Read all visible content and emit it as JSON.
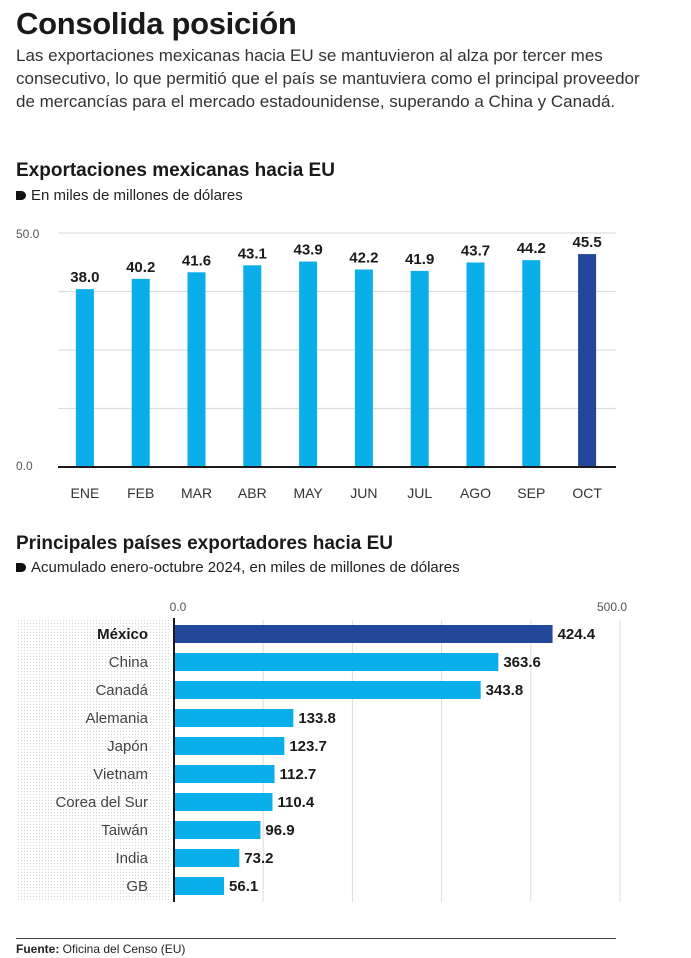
{
  "header": {
    "title": "Consolida posición",
    "intro": "Las exportaciones mexicanas hacia EU se mantuvieron al alza por tercer mes consecutivo, lo que permitió que el país se mantuviera como el principal proveedor de mercancías para el mercado estadounidense, superando a China y Canadá."
  },
  "colors": {
    "bar": "#0aaeea",
    "highlight": "#23479b",
    "grid": "#dddddd",
    "axis": "#1a1a1a"
  },
  "chart_data": [
    {
      "type": "bar",
      "title": "Exportaciones mexicanas hacia EU",
      "subtitle": "En miles de millones de dólares",
      "bullet_icon": "bullet-marker-icon",
      "categories": [
        "ENE",
        "FEB",
        "MAR",
        "ABR",
        "MAY",
        "JUN",
        "JUL",
        "AGO",
        "SEP",
        "OCT"
      ],
      "values": [
        38.0,
        40.2,
        41.6,
        43.1,
        43.9,
        42.2,
        41.9,
        43.7,
        44.2,
        45.5
      ],
      "value_labels": [
        "38.0",
        "40.2",
        "41.6",
        "43.1",
        "43.9",
        "42.2",
        "41.9",
        "43.7",
        "44.2",
        "45.5"
      ],
      "highlight_index": 9,
      "ylim": [
        0,
        50
      ],
      "yticks": [
        "0.0",
        "50.0"
      ],
      "grid": true,
      "grid_step": 12.5,
      "xlabel": "",
      "ylabel": ""
    },
    {
      "type": "bar",
      "orientation": "horizontal",
      "title": "Principales países exportadores hacia EU",
      "subtitle": "Acumulado enero-octubre 2024, en miles de millones de dólares",
      "bullet_icon": "bullet-marker-icon",
      "categories": [
        "México",
        "China",
        "Canadá",
        "Alemania",
        "Japón",
        "Vietnam",
        "Corea del Sur",
        "Taiwán",
        "India",
        "GB"
      ],
      "values": [
        424.4,
        363.6,
        343.8,
        133.8,
        123.7,
        112.7,
        110.4,
        96.9,
        73.2,
        56.1
      ],
      "value_labels": [
        "424.4",
        "363.6",
        "343.8",
        "133.8",
        "123.7",
        "112.7",
        "110.4",
        "96.9",
        "73.2",
        "56.1"
      ],
      "highlight_index": 0,
      "xlim": [
        0,
        500
      ],
      "xticks": [
        "0.0",
        "500.0"
      ],
      "grid": true,
      "grid_step": 100
    }
  ],
  "footer": {
    "source_label": "Fuente:",
    "source_text": " Oficina del Censo (EU)"
  }
}
